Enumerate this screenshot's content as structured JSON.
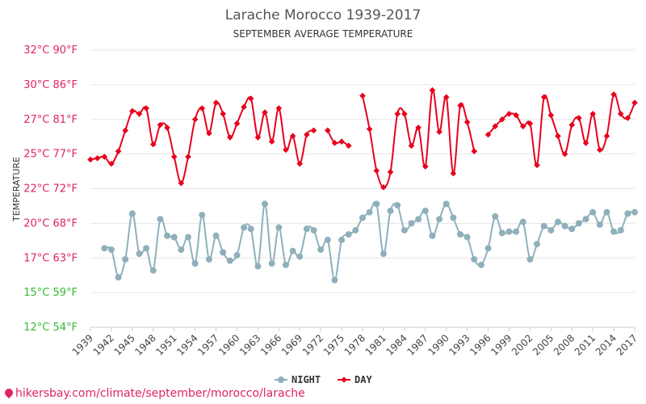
{
  "chart_data": {
    "type": "line",
    "title": "Larache Morocco 1939-2017",
    "subtitle": "SEPTEMBER AVERAGE TEMPERATURE",
    "ylabel": "TEMPERATURE",
    "ylim": [
      12,
      32
    ],
    "y_ticks": [
      {
        "value": 12,
        "label": "12°C 54°F",
        "color": "#33bb33"
      },
      {
        "value": 14.5,
        "label": "15°C 59°F",
        "color": "#33bb33"
      },
      {
        "value": 17,
        "label": "17°C 63°F",
        "color": "#e0245e"
      },
      {
        "value": 19.5,
        "label": "20°C 68°F",
        "color": "#e0245e"
      },
      {
        "value": 22,
        "label": "22°C 72°F",
        "color": "#e0245e"
      },
      {
        "value": 24.5,
        "label": "25°C 77°F",
        "color": "#e0245e"
      },
      {
        "value": 27,
        "label": "27°C 81°F",
        "color": "#e0245e"
      },
      {
        "value": 29.5,
        "label": "30°C 86°F",
        "color": "#e0245e"
      },
      {
        "value": 32,
        "label": "32°C 90°F",
        "color": "#e0245e"
      }
    ],
    "x_ticks": [
      1939,
      1942,
      1945,
      1948,
      1951,
      1954,
      1957,
      1960,
      1963,
      1966,
      1969,
      1972,
      1975,
      1978,
      1981,
      1984,
      1987,
      1990,
      1993,
      1996,
      1999,
      2002,
      2005,
      2008,
      2011,
      2014,
      2017
    ],
    "xlim": [
      1939,
      2017
    ],
    "legend": "bottom",
    "series": [
      {
        "name": "NIGHT",
        "color": "#8fb0bb",
        "marker": "circle",
        "x": [
          1941,
          1942,
          1943,
          1944,
          1945,
          1946,
          1947,
          1948,
          1949,
          1950,
          1951,
          1952,
          1953,
          1954,
          1955,
          1956,
          1957,
          1958,
          1959,
          1960,
          1961,
          1962,
          1963,
          1964,
          1965,
          1966,
          1967,
          1968,
          1969,
          1970,
          1971,
          1972,
          1973,
          1974,
          1975,
          1976,
          1977,
          1978,
          1979,
          1980,
          1981,
          1982,
          1983,
          1984,
          1985,
          1986,
          1987,
          1988,
          1989,
          1990,
          1991,
          1992,
          1993,
          1994,
          1995,
          1996,
          1997,
          1998,
          1999,
          2000,
          2001,
          2002,
          2003,
          2004,
          2005,
          2006,
          2007,
          2008,
          2009,
          2010,
          2011,
          2012,
          2013,
          2014,
          2015,
          2016,
          2017
        ],
        "y": [
          17.7,
          17.6,
          15.6,
          16.9,
          20.2,
          17.3,
          17.7,
          16.1,
          19.8,
          18.6,
          18.5,
          17.6,
          18.5,
          16.6,
          20.1,
          16.9,
          18.6,
          17.4,
          16.8,
          17.2,
          19.2,
          19.1,
          16.4,
          20.9,
          16.6,
          19.2,
          16.5,
          17.5,
          17.1,
          19.1,
          19.0,
          17.6,
          18.3,
          15.4,
          18.3,
          18.7,
          19.0,
          19.9,
          20.3,
          20.9,
          17.3,
          20.4,
          20.8,
          19.0,
          19.5,
          19.8,
          20.4,
          18.6,
          19.8,
          20.9,
          19.9,
          18.7,
          18.5,
          16.9,
          16.5,
          17.7,
          20.0,
          18.8,
          18.9,
          18.9,
          19.6,
          16.9,
          18.0,
          19.3,
          19.0,
          19.6,
          19.3,
          19.1,
          19.5,
          19.8,
          20.3,
          19.4,
          20.3,
          18.9,
          19.0,
          20.2,
          20.3
        ]
      },
      {
        "name": "DAY",
        "color": "#e8001c",
        "marker": "diamond",
        "x": [
          1939,
          1940,
          1941,
          1942,
          1943,
          1944,
          1945,
          1946,
          1947,
          1948,
          1949,
          1950,
          1951,
          1952,
          1953,
          1954,
          1955,
          1956,
          1957,
          1958,
          1959,
          1960,
          1961,
          1962,
          1963,
          1964,
          1965,
          1966,
          1967,
          1968,
          1969,
          1970,
          1971,
          null,
          1973,
          1974,
          1975,
          1976,
          null,
          1978,
          1979,
          1980,
          1981,
          1982,
          1983,
          1984,
          1985,
          1986,
          1987,
          1988,
          1989,
          1990,
          1991,
          1992,
          1993,
          1994,
          null,
          1996,
          1997,
          1998,
          1999,
          2000,
          2001,
          2002,
          2003,
          2004,
          2005,
          2006,
          2007,
          2008,
          2009,
          2010,
          2011,
          2012,
          2013,
          2014,
          2015,
          2016,
          2017
        ],
        "y": [
          24.1,
          24.2,
          24.3,
          23.8,
          24.7,
          26.2,
          27.6,
          27.4,
          27.8,
          25.2,
          26.6,
          26.4,
          24.3,
          22.4,
          24.3,
          27.0,
          27.8,
          26.0,
          28.2,
          27.4,
          25.7,
          26.7,
          27.9,
          28.5,
          25.7,
          27.5,
          25.4,
          27.8,
          24.8,
          25.8,
          23.8,
          25.9,
          26.2,
          null,
          26.2,
          25.3,
          25.4,
          25.1,
          null,
          28.7,
          26.3,
          23.3,
          22.1,
          23.2,
          27.4,
          27.4,
          25.1,
          26.4,
          23.6,
          29.1,
          26.1,
          28.6,
          23.1,
          28.0,
          26.8,
          24.7,
          null,
          25.9,
          26.5,
          27.0,
          27.4,
          27.3,
          26.5,
          26.7,
          23.7,
          28.6,
          27.3,
          25.8,
          24.5,
          26.6,
          27.1,
          25.3,
          27.4,
          24.8,
          25.8,
          28.8,
          27.4,
          27.1,
          28.2
        ]
      }
    ]
  },
  "footer": {
    "text": "hikersbay.com/climate/september/morocco/larache"
  }
}
